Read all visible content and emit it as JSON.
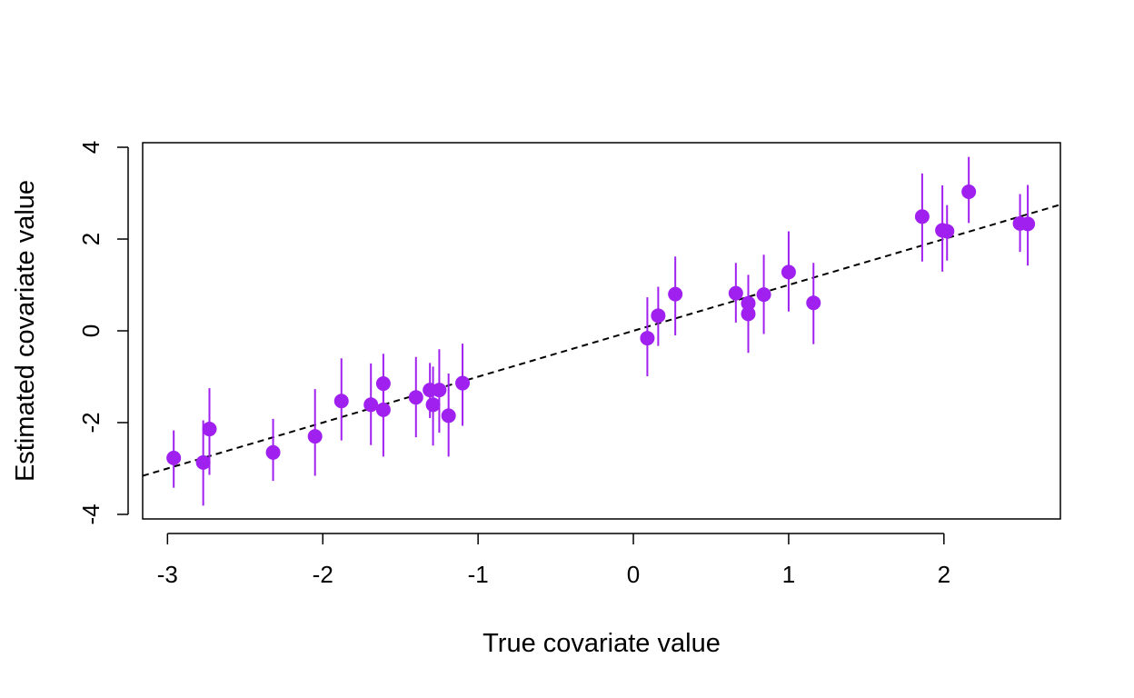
{
  "chart_data": {
    "type": "scatter",
    "xlabel": "True covariate value",
    "ylabel": "Estimated covariate value",
    "xlim": [
      -3.16,
      2.75
    ],
    "ylim": [
      -4.1,
      4.1
    ],
    "x_ticks": [
      -3,
      -2,
      -1,
      0,
      1,
      2
    ],
    "y_ticks": [
      -4,
      -2,
      0,
      2,
      4
    ],
    "x_tick_labels": [
      "-3",
      "-2",
      "-1",
      "0",
      "1",
      "2"
    ],
    "y_tick_labels": [
      "-4",
      "-2",
      "0",
      "2",
      "4"
    ],
    "grid": false,
    "legend": "none",
    "colors": {
      "points": "#a020f0",
      "reference_line": "#000000",
      "frame": "#000000"
    },
    "reference_line": {
      "style": "dashed",
      "slope": 1,
      "intercept": 0
    },
    "points": [
      {
        "x": -2.96,
        "y": -2.77,
        "lo": -3.42,
        "hi": -2.17
      },
      {
        "x": -2.77,
        "y": -2.87,
        "lo": -3.81,
        "hi": -1.95
      },
      {
        "x": -2.73,
        "y": -2.14,
        "lo": -3.14,
        "hi": -1.25
      },
      {
        "x": -2.32,
        "y": -2.65,
        "lo": -3.27,
        "hi": -1.92
      },
      {
        "x": -2.05,
        "y": -2.3,
        "lo": -3.16,
        "hi": -1.27
      },
      {
        "x": -1.88,
        "y": -1.53,
        "lo": -2.39,
        "hi": -0.6
      },
      {
        "x": -1.69,
        "y": -1.61,
        "lo": -2.49,
        "hi": -0.71
      },
      {
        "x": -1.61,
        "y": -1.15,
        "lo": -1.79,
        "hi": -0.5
      },
      {
        "x": -1.61,
        "y": -1.72,
        "lo": -2.74,
        "hi": -0.98
      },
      {
        "x": -1.4,
        "y": -1.45,
        "lo": -2.32,
        "hi": -0.57
      },
      {
        "x": -1.31,
        "y": -1.29,
        "lo": -1.9,
        "hi": -0.7
      },
      {
        "x": -1.29,
        "y": -1.61,
        "lo": -2.5,
        "hi": -0.78
      },
      {
        "x": -1.25,
        "y": -1.29,
        "lo": -2.22,
        "hi": -0.4
      },
      {
        "x": -1.19,
        "y": -1.85,
        "lo": -2.74,
        "hi": -0.93
      },
      {
        "x": -1.1,
        "y": -1.14,
        "lo": -2.07,
        "hi": -0.28
      },
      {
        "x": 0.09,
        "y": -0.16,
        "lo": -0.99,
        "hi": 0.73
      },
      {
        "x": 0.16,
        "y": 0.33,
        "lo": -0.33,
        "hi": 0.96
      },
      {
        "x": 0.27,
        "y": 0.8,
        "lo": -0.1,
        "hi": 1.62
      },
      {
        "x": 0.66,
        "y": 0.82,
        "lo": 0.18,
        "hi": 1.48
      },
      {
        "x": 0.74,
        "y": 0.6,
        "lo": -0.48,
        "hi": 1.22
      },
      {
        "x": 0.74,
        "y": 0.37,
        "lo": -0.09,
        "hi": 1.16
      },
      {
        "x": 0.84,
        "y": 0.79,
        "lo": -0.07,
        "hi": 1.66
      },
      {
        "x": 1.0,
        "y": 1.28,
        "lo": 0.42,
        "hi": 2.17
      },
      {
        "x": 1.16,
        "y": 0.61,
        "lo": -0.29,
        "hi": 1.48
      },
      {
        "x": 1.86,
        "y": 2.49,
        "lo": 1.51,
        "hi": 3.43
      },
      {
        "x": 1.99,
        "y": 2.19,
        "lo": 1.29,
        "hi": 3.17
      },
      {
        "x": 2.02,
        "y": 2.17,
        "lo": 1.53,
        "hi": 2.74
      },
      {
        "x": 2.16,
        "y": 3.03,
        "lo": 2.35,
        "hi": 3.79
      },
      {
        "x": 2.49,
        "y": 2.34,
        "lo": 1.72,
        "hi": 2.98
      },
      {
        "x": 2.54,
        "y": 2.33,
        "lo": 1.42,
        "hi": 3.18
      }
    ]
  }
}
